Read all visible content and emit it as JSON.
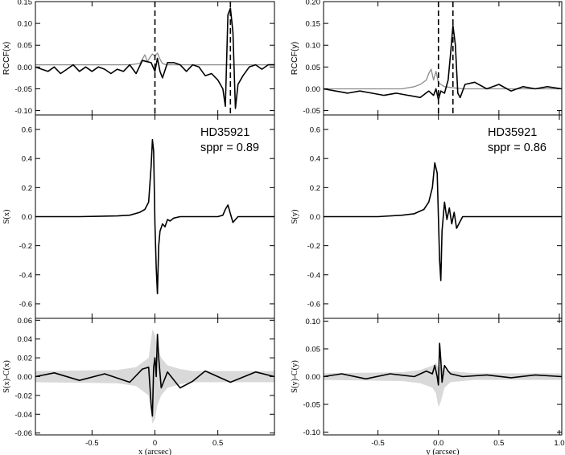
{
  "colors": {
    "main": "#000000",
    "reference": "#8c8c8c",
    "band": "#d9d9d9",
    "marker": "#000000"
  },
  "chart_data": [
    {
      "id": "rccf-x",
      "type": "line",
      "ylabel": "RCCF(x)",
      "ylabel_font": "sans",
      "xlim": [
        -0.95,
        0.95
      ],
      "ylim": [
        -0.11,
        0.15
      ],
      "yticks": [
        -0.1,
        -0.05,
        0.0,
        0.05,
        0.1,
        0.15
      ],
      "ytick_labels": [
        "-0.10",
        "-0.05",
        "0.00",
        "0.05",
        "0.10",
        "0.15"
      ],
      "vlines": [
        0.0,
        0.6
      ],
      "series": [
        {
          "role": "reference",
          "x": [
            -0.95,
            -0.2,
            -0.12,
            -0.08,
            -0.06,
            -0.04,
            -0.02,
            0.0,
            0.02,
            0.04,
            0.06,
            0.08,
            0.1,
            0.15,
            0.95
          ],
          "y": [
            0.005,
            0.005,
            0.008,
            0.028,
            0.012,
            0.022,
            0.03,
            0.025,
            0.032,
            0.018,
            0.008,
            0.006,
            0.005,
            0.005,
            0.005
          ]
        },
        {
          "role": "main",
          "x": [
            -0.95,
            -0.9,
            -0.85,
            -0.8,
            -0.75,
            -0.7,
            -0.65,
            -0.6,
            -0.55,
            -0.5,
            -0.45,
            -0.4,
            -0.35,
            -0.3,
            -0.25,
            -0.2,
            -0.15,
            -0.1,
            -0.06,
            -0.03,
            0.0,
            0.02,
            0.04,
            0.06,
            0.1,
            0.15,
            0.2,
            0.25,
            0.3,
            0.35,
            0.4,
            0.45,
            0.5,
            0.54,
            0.56,
            0.58,
            0.6,
            0.62,
            0.64,
            0.66,
            0.7,
            0.75,
            0.8,
            0.85,
            0.9,
            0.95
          ],
          "y": [
            0.0,
            -0.005,
            -0.01,
            0.0,
            -0.015,
            -0.005,
            0.005,
            -0.01,
            0.0,
            -0.01,
            0.0,
            -0.005,
            -0.015,
            -0.005,
            -0.01,
            0.005,
            -0.015,
            0.015,
            0.012,
            0.01,
            -0.01,
            0.02,
            -0.01,
            -0.025,
            0.01,
            0.01,
            0.005,
            -0.01,
            0.005,
            0.0,
            -0.02,
            -0.015,
            -0.03,
            -0.05,
            -0.09,
            0.12,
            0.135,
            0.08,
            -0.095,
            -0.04,
            -0.02,
            0.0,
            0.005,
            -0.005,
            0.005,
            0.005
          ]
        }
      ],
      "xtick_labels_visible": false
    },
    {
      "id": "rccf-y",
      "type": "line",
      "ylabel": "RCCF(y)",
      "ylabel_font": "sans",
      "xlim": [
        -0.95,
        1.02
      ],
      "ylim": [
        -0.06,
        0.2
      ],
      "yticks": [
        -0.05,
        0.0,
        0.05,
        0.1,
        0.15,
        0.2
      ],
      "ytick_labels": [
        "-0.05",
        "0.00",
        "0.05",
        "0.10",
        "0.15",
        "0.20"
      ],
      "vlines": [
        0.0,
        0.12
      ],
      "series": [
        {
          "role": "reference",
          "x": [
            -0.95,
            -0.3,
            -0.2,
            -0.15,
            -0.1,
            -0.08,
            -0.06,
            -0.04,
            -0.02,
            0.0,
            0.02,
            0.05,
            0.1,
            0.2,
            1.02
          ],
          "y": [
            0.0,
            0.0,
            0.005,
            0.01,
            0.02,
            0.035,
            0.045,
            0.02,
            0.04,
            0.015,
            0.01,
            0.005,
            0.003,
            0.0,
            0.0
          ]
        },
        {
          "role": "main",
          "x": [
            -0.95,
            -0.85,
            -0.75,
            -0.65,
            -0.55,
            -0.45,
            -0.35,
            -0.25,
            -0.15,
            -0.08,
            -0.04,
            -0.02,
            0.0,
            0.02,
            0.05,
            0.08,
            0.1,
            0.12,
            0.14,
            0.16,
            0.18,
            0.22,
            0.3,
            0.4,
            0.5,
            0.6,
            0.7,
            0.8,
            0.9,
            1.02
          ],
          "y": [
            0.0,
            -0.005,
            -0.01,
            -0.005,
            -0.01,
            -0.015,
            -0.01,
            -0.015,
            -0.02,
            -0.005,
            -0.015,
            0.0,
            -0.025,
            -0.005,
            -0.01,
            0.02,
            0.08,
            0.145,
            0.1,
            -0.01,
            -0.02,
            0.01,
            0.015,
            0.0,
            0.01,
            -0.005,
            0.005,
            0.0,
            0.005,
            0.0
          ]
        }
      ],
      "xtick_labels_visible": false
    },
    {
      "id": "s-x",
      "type": "line",
      "ylabel": "S(x)",
      "ylabel_font": "serif",
      "xlim": [
        -0.95,
        0.95
      ],
      "ylim": [
        -0.7,
        0.7
      ],
      "yticks": [
        -0.6,
        -0.4,
        -0.2,
        0.0,
        0.2,
        0.4,
        0.6
      ],
      "ytick_labels": [
        "-0.6",
        "-0.4",
        "-0.2",
        "0.0",
        "0.2",
        "0.4",
        "0.6"
      ],
      "annotation": [
        "HD35921",
        "sppr = 0.89"
      ],
      "series": [
        {
          "role": "main",
          "x": [
            -0.95,
            -0.6,
            -0.3,
            -0.2,
            -0.12,
            -0.08,
            -0.05,
            -0.03,
            -0.02,
            -0.01,
            0.0,
            0.01,
            0.02,
            0.03,
            0.04,
            0.06,
            0.08,
            0.1,
            0.12,
            0.15,
            0.2,
            0.3,
            0.4,
            0.5,
            0.54,
            0.56,
            0.58,
            0.6,
            0.62,
            0.66,
            0.7,
            0.8,
            0.95
          ],
          "y": [
            0.0,
            0.0,
            0.005,
            0.01,
            0.03,
            0.05,
            0.1,
            0.35,
            0.53,
            0.45,
            -0.05,
            -0.35,
            -0.53,
            -0.2,
            -0.1,
            -0.05,
            -0.07,
            -0.02,
            -0.03,
            -0.01,
            0.0,
            0.0,
            0.0,
            0.0,
            0.01,
            0.05,
            0.08,
            0.02,
            -0.04,
            0.0,
            0.0,
            0.0,
            0.0
          ]
        }
      ],
      "xtick_labels_visible": false
    },
    {
      "id": "s-y",
      "type": "line",
      "ylabel": "S(y)",
      "ylabel_font": "serif",
      "xlim": [
        -0.95,
        1.02
      ],
      "ylim": [
        -0.7,
        0.7
      ],
      "yticks": [
        -0.6,
        -0.4,
        -0.2,
        0.0,
        0.2,
        0.4,
        0.6
      ],
      "ytick_labels": [
        "-0.6",
        "-0.4",
        "-0.2",
        "0.0",
        "0.2",
        "0.4",
        "0.6"
      ],
      "annotation": [
        "HD35921",
        "sppr = 0.86"
      ],
      "series": [
        {
          "role": "main",
          "x": [
            -0.95,
            -0.5,
            -0.3,
            -0.2,
            -0.12,
            -0.08,
            -0.05,
            -0.03,
            -0.01,
            0.0,
            0.01,
            0.02,
            0.03,
            0.05,
            0.07,
            0.09,
            0.11,
            0.13,
            0.15,
            0.2,
            0.3,
            0.5,
            0.7,
            1.02
          ],
          "y": [
            0.0,
            0.0,
            0.01,
            0.02,
            0.05,
            0.1,
            0.2,
            0.37,
            0.3,
            0.0,
            -0.3,
            -0.44,
            -0.1,
            0.1,
            -0.02,
            0.06,
            -0.05,
            0.03,
            -0.08,
            0.0,
            0.0,
            0.0,
            0.0,
            0.0
          ]
        }
      ],
      "xtick_labels_visible": false
    },
    {
      "id": "resid-x",
      "type": "line",
      "ylabel": "S(x)-C(x)",
      "ylabel_font": "serif",
      "xlabel": "x (arcsec)",
      "xlim": [
        -0.95,
        0.95
      ],
      "ylim": [
        -0.062,
        0.062
      ],
      "yticks": [
        -0.06,
        -0.04,
        -0.02,
        0.0,
        0.02,
        0.04,
        0.06
      ],
      "ytick_labels": [
        "-0.06",
        "-0.04",
        "-0.02",
        "0.00",
        "0.02",
        "0.04",
        "0.06"
      ],
      "xticks": [
        -0.5,
        0.0,
        0.5
      ],
      "xtick_labels": [
        "-0.5",
        "0",
        "0.5"
      ],
      "band": {
        "x": [
          -0.95,
          -0.3,
          -0.15,
          -0.05,
          -0.02,
          0.0,
          0.02,
          0.05,
          0.1,
          0.2,
          0.3,
          0.95
        ],
        "upper": [
          0.006,
          0.007,
          0.01,
          0.02,
          0.05,
          0.045,
          0.03,
          0.02,
          0.012,
          0.008,
          0.006,
          0.006
        ],
        "lower": [
          -0.006,
          -0.007,
          -0.01,
          -0.02,
          -0.05,
          -0.045,
          -0.03,
          -0.02,
          -0.012,
          -0.008,
          -0.006,
          -0.006
        ]
      },
      "series": [
        {
          "role": "main",
          "x": [
            -0.95,
            -0.8,
            -0.6,
            -0.4,
            -0.2,
            -0.1,
            -0.05,
            -0.03,
            -0.02,
            -0.01,
            0.0,
            0.01,
            0.02,
            0.03,
            0.05,
            0.1,
            0.2,
            0.3,
            0.4,
            0.6,
            0.8,
            0.95
          ],
          "y": [
            0.0,
            0.004,
            -0.004,
            0.003,
            -0.006,
            0.008,
            0.01,
            -0.03,
            -0.042,
            0.01,
            0.02,
            0.0,
            0.045,
            0.02,
            -0.012,
            0.005,
            -0.012,
            -0.005,
            0.006,
            -0.006,
            0.005,
            0.0
          ]
        }
      ],
      "xtick_labels_visible": true
    },
    {
      "id": "resid-y",
      "type": "line",
      "ylabel": "S(y)-C(y)",
      "ylabel_font": "serif",
      "xlabel": "y (arcsec)",
      "xlim": [
        -0.95,
        1.02
      ],
      "ylim": [
        -0.105,
        0.105
      ],
      "yticks": [
        -0.1,
        -0.05,
        0.0,
        0.05,
        0.1
      ],
      "ytick_labels": [
        "-0.10",
        "-0.05",
        "0.00",
        "0.05",
        "0.10"
      ],
      "xticks": [
        -0.5,
        0.0,
        0.5,
        1.0
      ],
      "xtick_labels": [
        "-0.5",
        "0.0",
        "0.5",
        "1.0"
      ],
      "band": {
        "x": [
          -0.95,
          -0.3,
          -0.15,
          -0.05,
          -0.02,
          0.0,
          0.02,
          0.05,
          0.1,
          0.2,
          0.3,
          1.02
        ],
        "upper": [
          0.006,
          0.008,
          0.012,
          0.02,
          0.025,
          0.015,
          0.02,
          0.012,
          0.01,
          0.008,
          0.006,
          0.006
        ],
        "lower": [
          -0.006,
          -0.008,
          -0.012,
          -0.02,
          -0.03,
          -0.055,
          -0.045,
          -0.02,
          -0.01,
          -0.008,
          -0.006,
          -0.006
        ]
      },
      "series": [
        {
          "role": "main",
          "x": [
            -0.95,
            -0.8,
            -0.6,
            -0.4,
            -0.2,
            -0.1,
            -0.05,
            -0.03,
            -0.01,
            0.0,
            0.01,
            0.02,
            0.03,
            0.05,
            0.08,
            0.1,
            0.2,
            0.4,
            0.6,
            0.8,
            1.02
          ],
          "y": [
            0.0,
            0.005,
            -0.004,
            0.005,
            0.0,
            0.01,
            0.005,
            0.02,
            0.0,
            -0.015,
            0.06,
            0.03,
            -0.01,
            0.02,
            0.01,
            0.005,
            0.0,
            0.003,
            -0.002,
            0.003,
            0.0
          ]
        }
      ],
      "xtick_labels_visible": true
    }
  ]
}
